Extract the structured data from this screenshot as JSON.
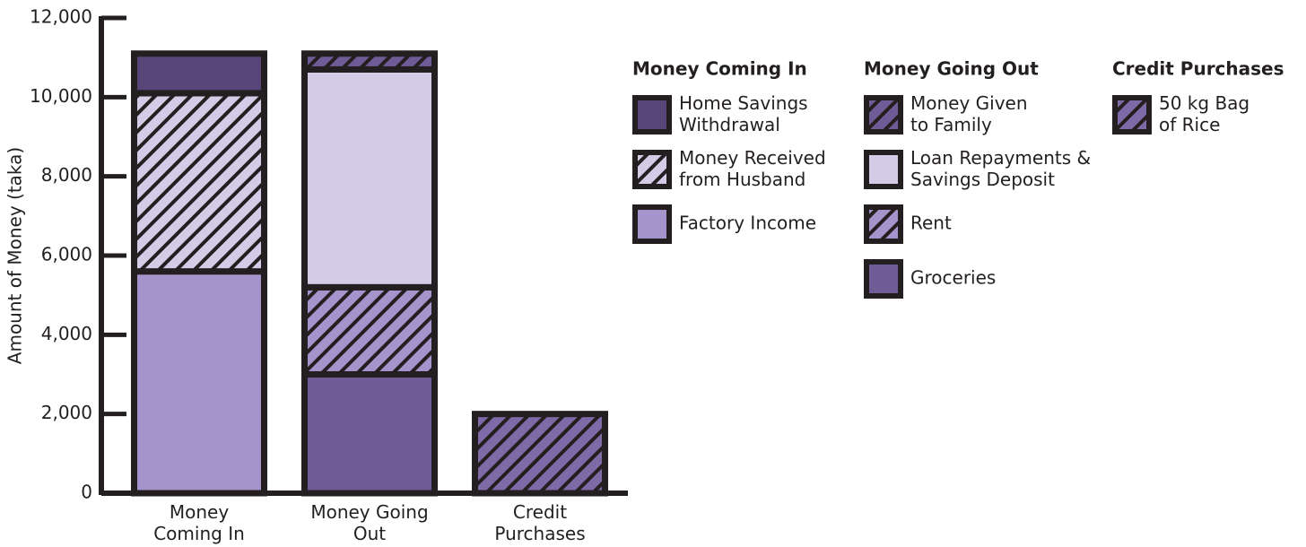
{
  "chart_data": {
    "type": "stacked_bar",
    "y_label": "Amount of Money (taka)",
    "categories": [
      "Money\nComing In",
      "Money Going\nOut",
      "Credit\nPurchases"
    ],
    "legend_titles": [
      "Money Coming In",
      "Money Going Out",
      "Credit Purchases"
    ],
    "series": [
      {
        "name": "Factory Income",
        "color": "#a594cc",
        "hatch": false,
        "values": [
          5600,
          null,
          null
        ]
      },
      {
        "name": "Money Received\nfrom Husband",
        "color": "#d4cce6",
        "hatch": true,
        "values": [
          4500,
          null,
          null
        ]
      },
      {
        "name": "Home Savings\nWithdrawal",
        "color": "#574677",
        "hatch": false,
        "values": [
          1000,
          null,
          null
        ]
      },
      {
        "name": "Groceries",
        "color": "#6f5c96",
        "hatch": false,
        "values": [
          null,
          3000,
          null
        ]
      },
      {
        "name": "Rent",
        "color": "#a594cc",
        "hatch": true,
        "values": [
          null,
          2200,
          null
        ]
      },
      {
        "name": "Loan Repayments &\nSavings Deposit",
        "color": "#d4cce6",
        "hatch": false,
        "values": [
          null,
          5500,
          null
        ]
      },
      {
        "name": "Money Given\nto Family",
        "color": "#6f5c96",
        "hatch": true,
        "values": [
          null,
          400,
          null
        ]
      },
      {
        "name": "50 kg Bag\nof Rice",
        "color": "#7f6aa8",
        "hatch": true,
        "values": [
          null,
          null,
          2000
        ]
      }
    ],
    "ylim": [
      0,
      12000
    ],
    "yticks": [
      0,
      {
        "value": 2000,
        "label": "2,000"
      },
      {
        "value": 4000,
        "label": "4,000"
      },
      {
        "value": 6000,
        "label": "6,000"
      },
      {
        "value": 8000,
        "label": "8,000"
      },
      {
        "value": 10000,
        "label": "10,000"
      },
      {
        "value": 12000,
        "label": "12,000"
      }
    ],
    "outline_color": "#231f20"
  }
}
